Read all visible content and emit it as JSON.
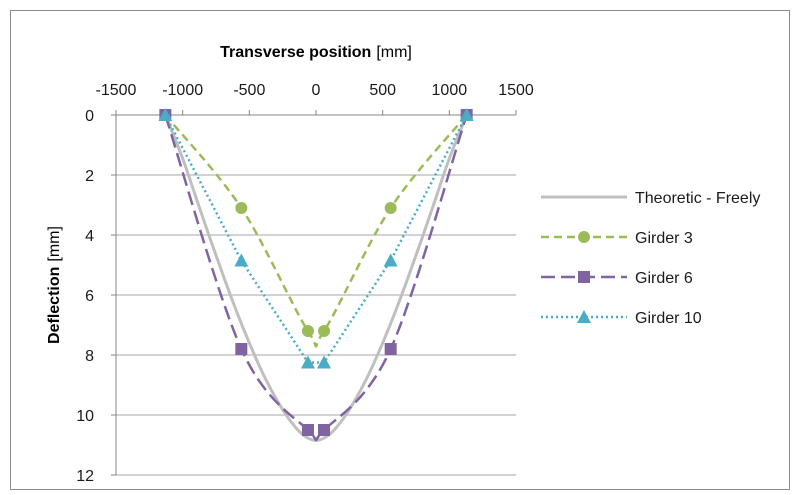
{
  "chart_data": {
    "type": "line",
    "xlabel": "Transverse position",
    "xlabel_unit": "[mm]",
    "ylabel": "Deflection",
    "ylabel_unit": "[mm]",
    "xlim": [
      -1500,
      1500
    ],
    "ylim": [
      0,
      12
    ],
    "y_inverted": true,
    "x_axis_position": "top",
    "x_ticks": [
      -1500,
      -1000,
      -500,
      0,
      500,
      1000,
      1500
    ],
    "y_ticks": [
      0,
      2,
      4,
      6,
      8,
      10,
      12
    ],
    "grid": "horizontal",
    "legend_position": "right",
    "series": [
      {
        "name": "Theoretic - Freely",
        "color": "#bfbfbf",
        "style": "solid",
        "marker": "none",
        "curve": "smooth",
        "x": [
          -1130,
          -1000,
          -900,
          -800,
          -700,
          -600,
          -500,
          -400,
          -300,
          -200,
          -100,
          0,
          100,
          200,
          300,
          400,
          500,
          600,
          700,
          800,
          900,
          1000,
          1130
        ],
        "y": [
          0,
          1.45,
          2.75,
          4.05,
          5.3,
          6.5,
          7.6,
          8.6,
          9.45,
          10.15,
          10.65,
          10.85,
          10.65,
          10.15,
          9.45,
          8.6,
          7.6,
          6.5,
          5.3,
          4.05,
          2.75,
          1.45,
          0
        ]
      },
      {
        "name": "Girder 3",
        "color": "#9bbb59",
        "style": "dashed",
        "marker": "circle",
        "curve": "smooth",
        "x": [
          -1130,
          -560,
          -60,
          60,
          560,
          1130
        ],
        "y": [
          0,
          3.1,
          7.2,
          7.2,
          3.1,
          0
        ]
      },
      {
        "name": "Girder 6",
        "color": "#8064a2",
        "style": "longdash",
        "marker": "square",
        "curve": "smooth",
        "x": [
          -1130,
          -560,
          -60,
          60,
          560,
          1130
        ],
        "y": [
          0,
          7.8,
          10.5,
          10.5,
          7.8,
          0
        ]
      },
      {
        "name": "Girder 10",
        "color": "#4bacc6",
        "style": "dotted",
        "marker": "triangle",
        "curve": "straight",
        "x": [
          -1130,
          -560,
          -60,
          60,
          560,
          1130
        ],
        "y": [
          0,
          4.85,
          8.25,
          8.25,
          4.85,
          0
        ]
      }
    ]
  }
}
